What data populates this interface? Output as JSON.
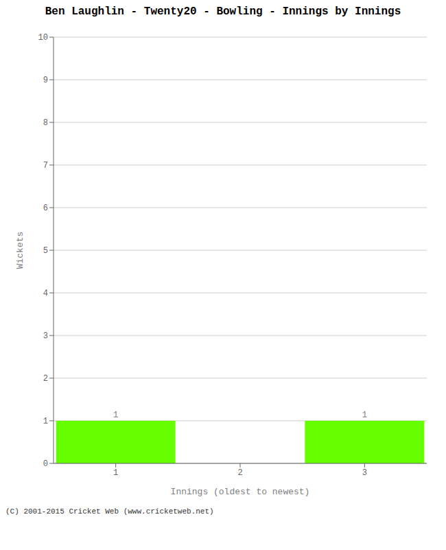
{
  "chart_data": {
    "type": "bar",
    "title": "Ben Laughlin - Twenty20 - Bowling - Innings by Innings",
    "xlabel": "Innings (oldest to newest)",
    "ylabel": "Wickets",
    "categories": [
      1,
      2,
      3
    ],
    "values": [
      1,
      0,
      1
    ],
    "color": "#66ff00",
    "ylim": [
      0,
      10
    ],
    "yticks": [
      0,
      1,
      2,
      3,
      4,
      5,
      6,
      7,
      8,
      9,
      10
    ],
    "grid": true,
    "data_labels": true,
    "annotations": [
      "(C) 2001-2015 Cricket Web (www.cricketweb.net)"
    ]
  }
}
